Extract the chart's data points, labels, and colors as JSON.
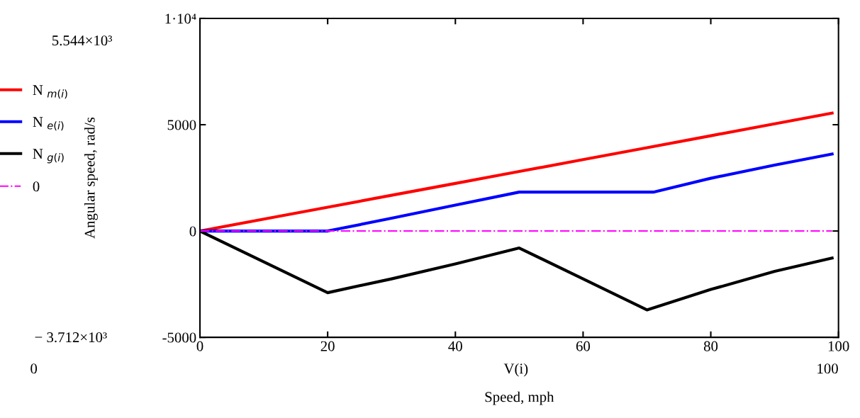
{
  "chart_data": {
    "type": "line",
    "xlabel": "Speed, mph",
    "ylabel": "Angular speed, rad/s",
    "xlim": [
      0,
      100
    ],
    "xticks": [
      0,
      20,
      40,
      60,
      80,
      100
    ],
    "ylim": [
      -5000,
      10000
    ],
    "yticks": [
      -5000,
      0,
      5000,
      {
        "value": 10000,
        "label": "1·10⁴"
      }
    ],
    "legend": "left",
    "grid": false,
    "series": [
      {
        "name": "N $_{m(i)}$",
        "color": "#ff0000",
        "x": [
          0,
          10,
          20,
          30,
          40,
          50,
          60,
          70,
          80,
          90,
          99
        ],
        "values": [
          0,
          560,
          1120,
          1680,
          2240,
          2800,
          3360,
          3920,
          4480,
          5040,
          5544
        ]
      },
      {
        "name": "N $_{e(i)}$",
        "color": "#0000ff",
        "x": [
          0,
          20,
          30,
          40,
          50,
          60,
          71,
          80,
          90,
          99
        ],
        "values": [
          0,
          0,
          600,
          1220,
          1830,
          1830,
          1830,
          2480,
          3100,
          3620
        ]
      },
      {
        "name": "N $_{g(i)}$",
        "color": "#000000",
        "x": [
          0,
          10,
          20,
          30,
          40,
          48,
          50,
          60,
          70,
          80,
          90,
          99
        ],
        "values": [
          0,
          -1450,
          -2900,
          -2250,
          -1550,
          -950,
          -800,
          -2250,
          -3712,
          -2750,
          -1900,
          -1270
        ]
      },
      {
        "name": "0",
        "color": "#ff00ff",
        "line_style": "dashdot",
        "x": [
          0,
          99
        ],
        "values": [
          0,
          0
        ]
      }
    ],
    "annotations": [
      "5.544×10³",
      "− 3.712×10³",
      "0",
      "100",
      "V(i)"
    ]
  }
}
